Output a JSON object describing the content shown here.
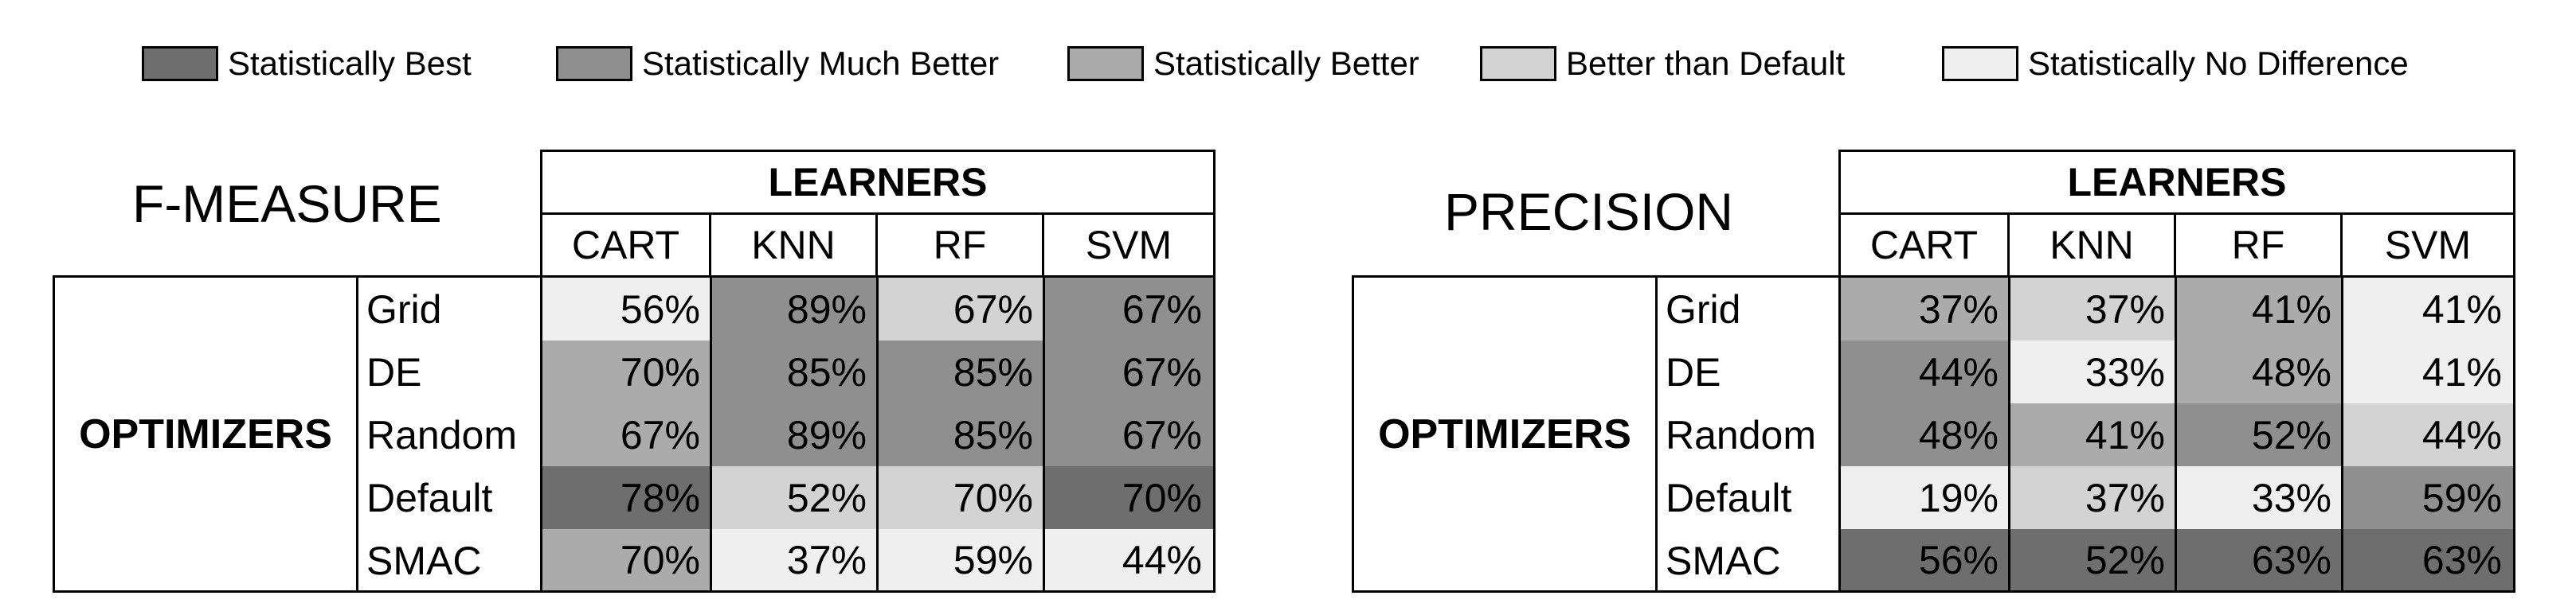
{
  "legend": {
    "items": [
      {
        "label": "Statistically Best",
        "color": "#6e6e6e"
      },
      {
        "label": "Statistically Much Better",
        "color": "#8f8f8f"
      },
      {
        "label": "Statistically Better",
        "color": "#ababab"
      },
      {
        "label": "Better than Default",
        "color": "#d3d3d3"
      },
      {
        "label": "Statistically No Difference",
        "color": "#efefef"
      }
    ]
  },
  "chart_data": [
    {
      "type": "table",
      "title": "F-MEASURE",
      "column_group_label": "LEARNERS",
      "row_group_label": "OPTIMIZERS",
      "columns": [
        "CART",
        "KNN",
        "RF",
        "SVM"
      ],
      "rows": [
        "Grid",
        "DE",
        "Random",
        "Default",
        "SMAC"
      ],
      "values": [
        [
          "56%",
          "89%",
          "67%",
          "67%"
        ],
        [
          "70%",
          "85%",
          "85%",
          "67%"
        ],
        [
          "67%",
          "89%",
          "85%",
          "67%"
        ],
        [
          "78%",
          "52%",
          "70%",
          "70%"
        ],
        [
          "70%",
          "37%",
          "59%",
          "44%"
        ]
      ],
      "shading": [
        [
          "Statistically No Difference",
          "Statistically Much Better",
          "Better than Default",
          "Statistically Much Better"
        ],
        [
          "Statistically Better",
          "Statistically Much Better",
          "Statistically Much Better",
          "Statistically Much Better"
        ],
        [
          "Statistically Better",
          "Statistically Much Better",
          "Statistically Much Better",
          "Statistically Much Better"
        ],
        [
          "Statistically Best",
          "Better than Default",
          "Better than Default",
          "Statistically Best"
        ],
        [
          "Statistically Better",
          "Statistically No Difference",
          "Statistically No Difference",
          "Statistically No Difference"
        ]
      ]
    },
    {
      "type": "table",
      "title": "PRECISION",
      "column_group_label": "LEARNERS",
      "row_group_label": "OPTIMIZERS",
      "columns": [
        "CART",
        "KNN",
        "RF",
        "SVM"
      ],
      "rows": [
        "Grid",
        "DE",
        "Random",
        "Default",
        "SMAC"
      ],
      "values": [
        [
          "37%",
          "37%",
          "41%",
          "41%"
        ],
        [
          "44%",
          "33%",
          "48%",
          "41%"
        ],
        [
          "48%",
          "41%",
          "52%",
          "44%"
        ],
        [
          "19%",
          "37%",
          "33%",
          "59%"
        ],
        [
          "56%",
          "52%",
          "63%",
          "63%"
        ]
      ],
      "shading": [
        [
          "Statistically Better",
          "Better than Default",
          "Statistically Better",
          "Statistically No Difference"
        ],
        [
          "Statistically Much Better",
          "Statistically No Difference",
          "Statistically Better",
          "Statistically No Difference"
        ],
        [
          "Statistically Much Better",
          "Statistically Better",
          "Statistically Much Better",
          "Better than Default"
        ],
        [
          "Statistically No Difference",
          "Better than Default",
          "Statistically No Difference",
          "Statistically Much Better"
        ],
        [
          "Statistically Best",
          "Statistically Best",
          "Statistically Best",
          "Statistically Best"
        ]
      ]
    }
  ]
}
